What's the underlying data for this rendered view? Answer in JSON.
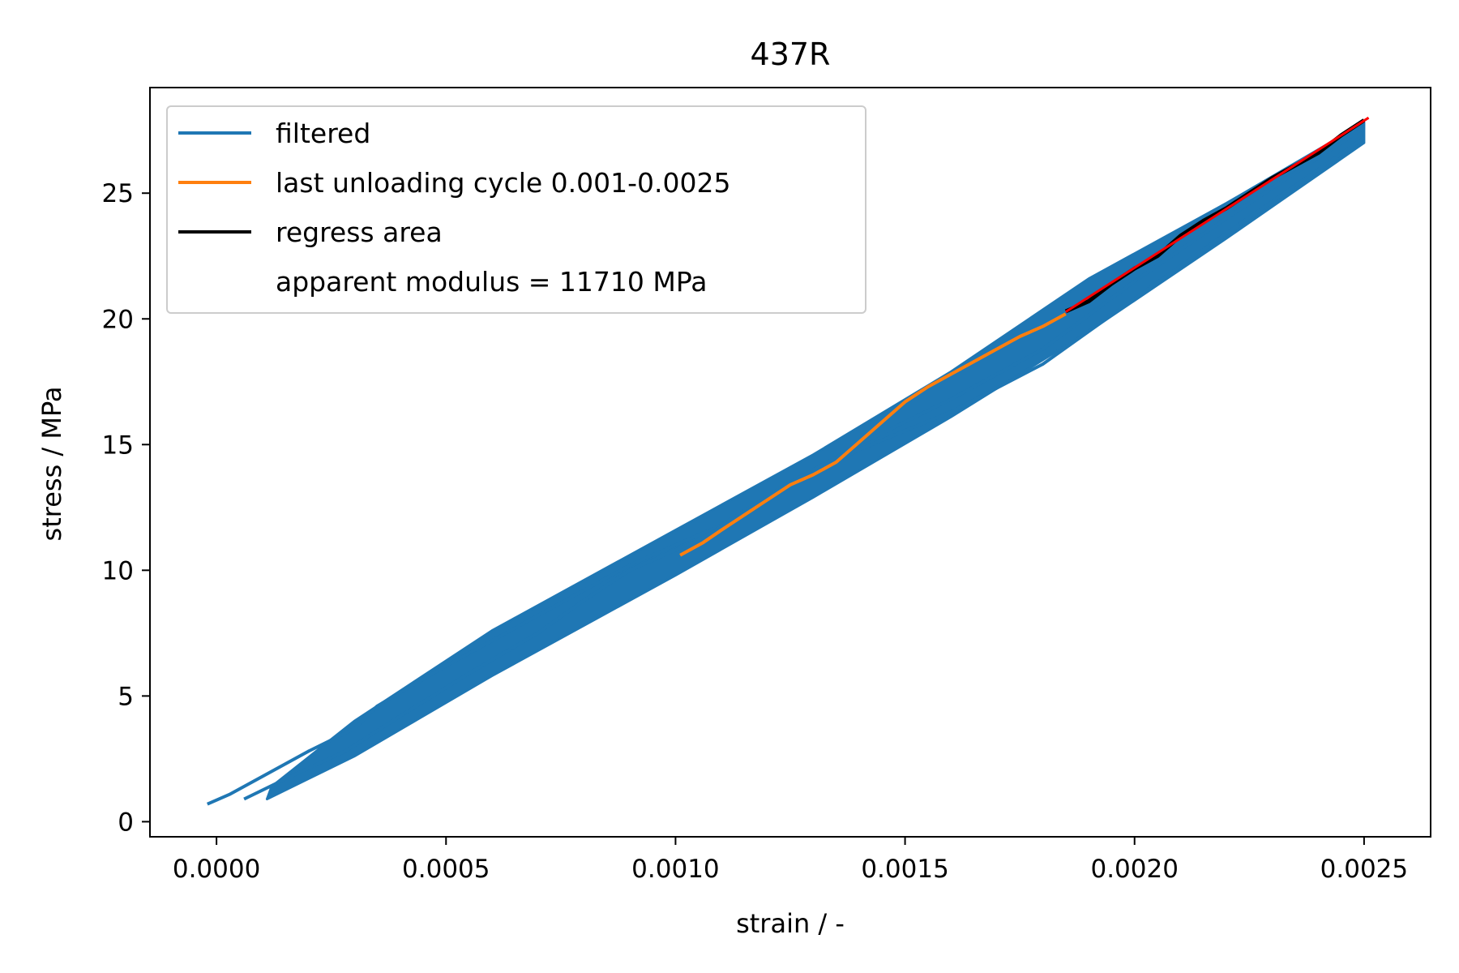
{
  "chart_data": {
    "type": "line",
    "title": "437R",
    "xlabel": "strain / -",
    "ylabel": "stress / MPa",
    "xlim": [
      -0.000145,
      0.002645
    ],
    "ylim": [
      -0.6,
      29.2
    ],
    "xticks": [
      0.0,
      0.0005,
      0.001,
      0.0015,
      0.002,
      0.0025
    ],
    "xtick_labels": [
      "0.0000",
      "0.0005",
      "0.0010",
      "0.0015",
      "0.0020",
      "0.0025"
    ],
    "yticks": [
      0,
      5,
      10,
      15,
      20,
      25
    ],
    "ytick_labels": [
      "0",
      "5",
      "10",
      "15",
      "20",
      "25"
    ],
    "grid": false,
    "legend_position": "top-left",
    "series": [
      {
        "name": "filtered",
        "color": "#1f77b4",
        "band_lower": [
          [
            0.00011,
            0.9
          ],
          [
            0.0003,
            2.6
          ],
          [
            0.0006,
            5.8
          ],
          [
            0.001,
            9.8
          ],
          [
            0.0013,
            12.9
          ],
          [
            0.0016,
            16.1
          ],
          [
            0.0019,
            19.5
          ],
          [
            0.0022,
            23.2
          ],
          [
            0.0025,
            27.0
          ]
        ],
        "band_upper": [
          [
            0.00012,
            1.4
          ],
          [
            0.0003,
            4.0
          ],
          [
            0.0006,
            7.6
          ],
          [
            0.001,
            11.6
          ],
          [
            0.0013,
            14.6
          ],
          [
            0.0016,
            17.9
          ],
          [
            0.0019,
            21.6
          ],
          [
            0.0022,
            24.6
          ],
          [
            0.0025,
            27.8
          ]
        ],
        "strand1": [
          [
            -2e-05,
            0.7
          ],
          [
            3e-05,
            1.1
          ],
          [
            0.0001,
            1.8
          ],
          [
            0.0002,
            2.8
          ],
          [
            0.0003,
            3.7
          ],
          [
            0.00035,
            4.6
          ],
          [
            0.0005,
            6.2
          ],
          [
            0.0007,
            8.2
          ],
          [
            0.0009,
            10.2
          ],
          [
            0.0011,
            11.8
          ],
          [
            0.00125,
            13.5
          ],
          [
            0.0014,
            15.0
          ],
          [
            0.0016,
            16.8
          ],
          [
            0.0018,
            18.8
          ],
          [
            0.002,
            21.5
          ],
          [
            0.0022,
            24.0
          ],
          [
            0.0025,
            27.6
          ]
        ],
        "strand2": [
          [
            6e-05,
            0.9
          ],
          [
            0.00015,
            1.7
          ],
          [
            0.00028,
            2.8
          ],
          [
            0.0004,
            4.2
          ],
          [
            0.00055,
            5.9
          ],
          [
            0.0007,
            7.5
          ],
          [
            0.0008,
            8.8
          ],
          [
            0.0009,
            10.0
          ],
          [
            0.00105,
            11.2
          ],
          [
            0.0012,
            12.8
          ],
          [
            0.0014,
            14.8
          ],
          [
            0.0016,
            16.3
          ],
          [
            0.0018,
            18.2
          ],
          [
            0.002,
            20.8
          ],
          [
            0.0022,
            23.4
          ],
          [
            0.0025,
            27.2
          ]
        ]
      },
      {
        "name": "last unloading cycle 0.001-0.0025",
        "color": "#ff7f0e",
        "x": [
          0.00101,
          0.00106,
          0.0011,
          0.00115,
          0.0012,
          0.00125,
          0.0013,
          0.00135,
          0.0014,
          0.00145,
          0.0015,
          0.00155,
          0.0016,
          0.00165,
          0.0017,
          0.00175,
          0.0018,
          0.00185
        ],
        "y": [
          10.6,
          11.1,
          11.6,
          12.2,
          12.8,
          13.4,
          13.8,
          14.3,
          15.1,
          15.9,
          16.7,
          17.3,
          17.8,
          18.3,
          18.8,
          19.3,
          19.7,
          20.2
        ]
      },
      {
        "name": "regress area",
        "color": "#000000",
        "x": [
          0.00185,
          0.0019,
          0.00195,
          0.002,
          0.00205,
          0.0021,
          0.00215,
          0.0022,
          0.00225,
          0.0023,
          0.00235,
          0.0024,
          0.00245,
          0.0025
        ],
        "y": [
          20.3,
          20.7,
          21.4,
          22.0,
          22.5,
          23.3,
          23.9,
          24.4,
          25.0,
          25.6,
          26.1,
          26.6,
          27.3,
          27.9
        ]
      },
      {
        "name": "apparent modulus = 11710 MPa",
        "color": "#ff0000",
        "legend_marker": false,
        "x": [
          0.00185,
          0.00251
        ],
        "y": [
          20.28,
          28.0
        ]
      }
    ]
  }
}
